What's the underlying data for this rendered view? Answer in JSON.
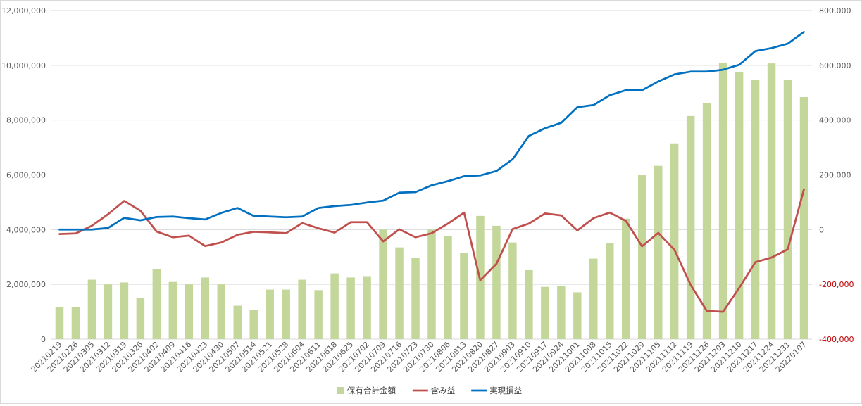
{
  "chart_data": {
    "type": "bar",
    "categories": [
      "20210219",
      "20210226",
      "20210305",
      "20210312",
      "20210319",
      "20210326",
      "20210402",
      "20210409",
      "20210416",
      "20210423",
      "20210430",
      "20210507",
      "20210514",
      "20210521",
      "20210528",
      "20210604",
      "20210611",
      "20210618",
      "20210625",
      "20210702",
      "20210709",
      "20210716",
      "20210723",
      "20210730",
      "20210806",
      "20210813",
      "20210820",
      "20210827",
      "20210903",
      "20210910",
      "20210917",
      "20210924",
      "20211001",
      "20211008",
      "20211015",
      "20211022",
      "20211029",
      "20211105",
      "20211112",
      "20211119",
      "20211126",
      "20211203",
      "20211210",
      "20211217",
      "20211224",
      "20211231",
      "20220107"
    ],
    "y_left": {
      "ylim": [
        0,
        12000000
      ],
      "ticks": [
        0,
        2000000,
        4000000,
        6000000,
        8000000,
        10000000,
        12000000
      ],
      "tick_labels": [
        "0",
        "2,000,000",
        "4,000,000",
        "6,000,000",
        "8,000,000",
        "10,000,000",
        "12,000,000"
      ]
    },
    "y_right": {
      "ylim": [
        -400000,
        800000
      ],
      "ticks": [
        -400000,
        -200000,
        0,
        200000,
        400000,
        600000,
        800000
      ],
      "tick_labels": [
        "-400,000",
        "-200,000",
        "0",
        "200,000",
        "400,000",
        "600,000",
        "800,000"
      ],
      "negative_color": "#c00000"
    },
    "grid": true,
    "legend_position": "bottom",
    "series": [
      {
        "name": "保有合計金額",
        "type": "bar",
        "axis": "left",
        "color": "#c4d79b",
        "values": [
          1170000,
          1170000,
          2170000,
          2000000,
          2070000,
          1500000,
          2550000,
          2090000,
          2000000,
          2250000,
          2000000,
          1220000,
          1060000,
          1810000,
          1810000,
          2170000,
          1790000,
          2400000,
          2250000,
          2300000,
          4000000,
          3350000,
          2960000,
          4000000,
          3760000,
          3140000,
          4500000,
          4140000,
          3530000,
          2520000,
          1910000,
          1930000,
          1710000,
          2940000,
          3510000,
          4400000,
          6000000,
          6330000,
          7150000,
          8150000,
          8630000,
          10100000,
          9760000,
          9480000,
          10070000,
          9480000,
          8840000
        ]
      },
      {
        "name": "含み益",
        "type": "line",
        "axis": "right",
        "color": "#c0504d",
        "values": [
          -16000,
          -14000,
          14000,
          56000,
          105000,
          69000,
          -7000,
          -28000,
          -22000,
          -60000,
          -47000,
          -19000,
          -8000,
          -10000,
          -13000,
          24000,
          5000,
          -11000,
          27000,
          27000,
          -43000,
          1000,
          -28000,
          -13000,
          22000,
          62000,
          -185000,
          -125000,
          2000,
          22000,
          59000,
          52000,
          -3000,
          42000,
          62000,
          32000,
          -61000,
          -12000,
          -74000,
          -202000,
          -297000,
          -300000,
          -213000,
          -119000,
          -102000,
          -72000,
          147000
        ]
      },
      {
        "name": "実現損益",
        "type": "line",
        "axis": "right",
        "color": "#0070c0",
        "values": [
          0,
          0,
          0,
          6000,
          43000,
          34000,
          46000,
          48000,
          42000,
          37000,
          61000,
          79000,
          50000,
          48000,
          45000,
          48000,
          79000,
          86000,
          90000,
          99000,
          106000,
          135000,
          137000,
          162000,
          177000,
          195000,
          198000,
          214000,
          257000,
          342000,
          370000,
          390000,
          447000,
          455000,
          491000,
          509000,
          509000,
          541000,
          567000,
          577000,
          577000,
          584000,
          602000,
          652000,
          663000,
          679000,
          722000
        ]
      }
    ]
  }
}
